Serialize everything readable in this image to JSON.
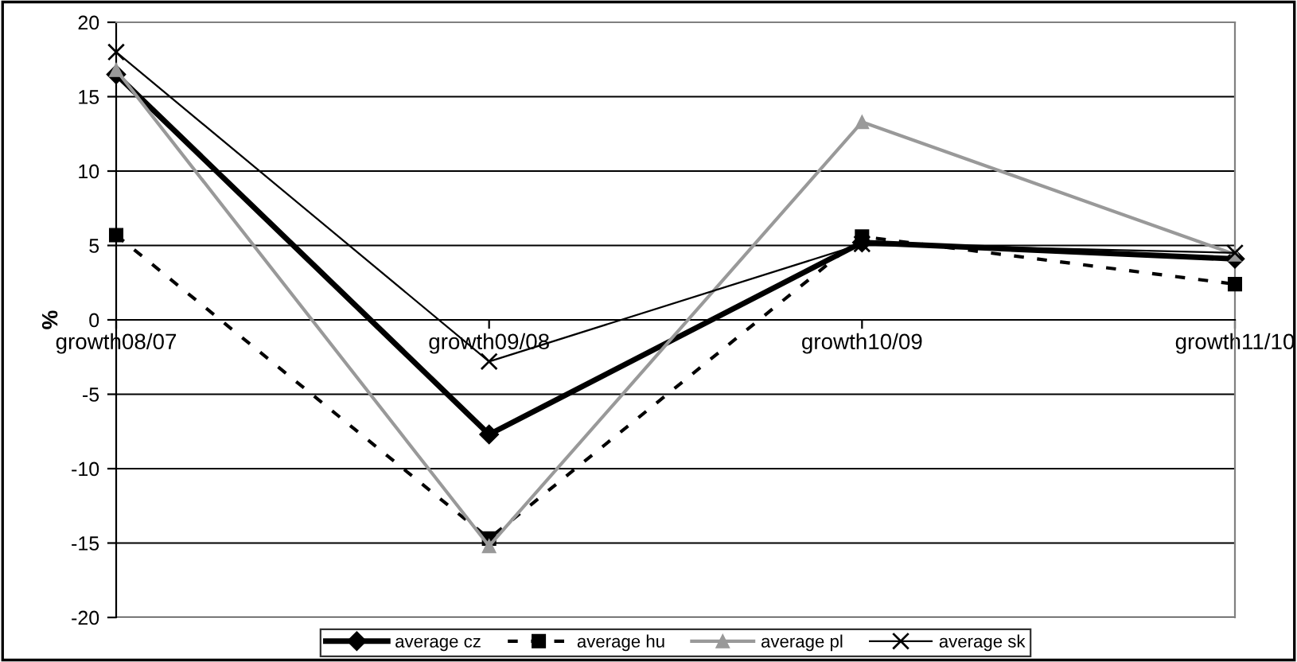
{
  "chart_data": {
    "type": "line",
    "ylabel": "%",
    "categories": [
      "growth08/07",
      "growth09/08",
      "growth10/09",
      "growth11/10"
    ],
    "series": [
      {
        "name": "average cz",
        "color": "#000000",
        "values": [
          16.5,
          -7.7,
          5.2,
          4.1
        ],
        "marker": "diamond",
        "line_style": "solid"
      },
      {
        "name": "average hu",
        "color": "#000000",
        "values": [
          5.7,
          -14.7,
          5.6,
          2.4
        ],
        "marker": "square",
        "line_style": "dashed"
      },
      {
        "name": "average pl",
        "color": "#999999",
        "values": [
          16.8,
          -15.2,
          13.3,
          4.4
        ],
        "marker": "triangle",
        "line_style": "solid"
      },
      {
        "name": "average sk",
        "color": "#000000",
        "values": [
          18,
          -2.8,
          5.1,
          4.5
        ],
        "marker": "cross",
        "line_style": "solid"
      }
    ],
    "ylim": [
      -20,
      20
    ],
    "yticks": [
      -20,
      -15,
      -10,
      -5,
      0,
      5,
      10,
      15,
      20
    ],
    "grid": "y",
    "legend": "bottom"
  }
}
